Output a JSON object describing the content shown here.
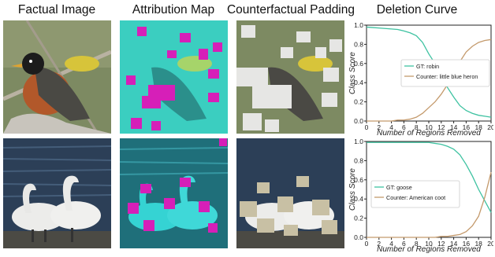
{
  "columns": {
    "factual": "Factual Image",
    "attribution": "Attribution Map",
    "counterfactual": "Counterfactual Padding",
    "deletion": "Deletion Curve"
  },
  "colors": {
    "gt_series": "#3ec2a1",
    "counter_series": "#c49a6c",
    "attribution_overlay": "#35d3d3",
    "attribution_highlight": "#d61fb8"
  },
  "chart_data": [
    {
      "type": "line",
      "xlabel": "Number of Regions Removed",
      "ylabel": "Class Score",
      "xlim": [
        0,
        20
      ],
      "ylim": [
        0,
        1.0
      ],
      "xticks": [
        "0",
        "2",
        "4",
        "6",
        "8",
        "10",
        "12",
        "14",
        "16",
        "18",
        "20"
      ],
      "yticks": [
        "0.0",
        "0.2",
        "0.4",
        "0.6",
        "0.8",
        "1.0"
      ],
      "legend_position": "center-right",
      "grid": false,
      "x": [
        0,
        1,
        2,
        3,
        4,
        5,
        6,
        7,
        8,
        9,
        10,
        11,
        12,
        13,
        14,
        15,
        16,
        17,
        18,
        19,
        20
      ],
      "series": [
        {
          "name": "GT: robin",
          "values": [
            0.98,
            0.975,
            0.97,
            0.965,
            0.96,
            0.955,
            0.94,
            0.92,
            0.89,
            0.82,
            0.7,
            0.6,
            0.48,
            0.35,
            0.25,
            0.16,
            0.11,
            0.08,
            0.06,
            0.05,
            0.04
          ]
        },
        {
          "name": "Counter: little blue heron",
          "values": [
            0.0,
            0.0,
            0.0,
            0.0,
            0.0,
            0.01,
            0.01,
            0.02,
            0.04,
            0.08,
            0.14,
            0.2,
            0.28,
            0.38,
            0.5,
            0.62,
            0.72,
            0.78,
            0.82,
            0.84,
            0.85
          ]
        }
      ]
    },
    {
      "type": "line",
      "xlabel": "Number of Regions Removed",
      "ylabel": "Class Score",
      "xlim": [
        0,
        20
      ],
      "ylim": [
        0,
        1.0
      ],
      "xticks": [
        "0",
        "2",
        "4",
        "6",
        "8",
        "10",
        "12",
        "14",
        "16",
        "18",
        "20"
      ],
      "yticks": [
        "0.0",
        "0.2",
        "0.4",
        "0.6",
        "0.8",
        "1.0"
      ],
      "legend_position": "center-left",
      "grid": false,
      "x": [
        0,
        1,
        2,
        3,
        4,
        5,
        6,
        7,
        8,
        9,
        10,
        11,
        12,
        13,
        14,
        15,
        16,
        17,
        18,
        19,
        20
      ],
      "series": [
        {
          "name": "GT: goose",
          "values": [
            0.99,
            0.99,
            0.99,
            0.99,
            0.99,
            0.99,
            0.99,
            0.99,
            0.99,
            0.99,
            0.99,
            0.98,
            0.97,
            0.95,
            0.92,
            0.86,
            0.76,
            0.64,
            0.5,
            0.38,
            0.26
          ]
        },
        {
          "name": "Counter: American coot",
          "values": [
            0.0,
            0.0,
            0.0,
            0.0,
            0.0,
            0.0,
            0.0,
            0.0,
            0.0,
            0.0,
            0.0,
            0.0,
            0.01,
            0.01,
            0.02,
            0.03,
            0.06,
            0.12,
            0.22,
            0.42,
            0.68
          ]
        }
      ]
    }
  ]
}
